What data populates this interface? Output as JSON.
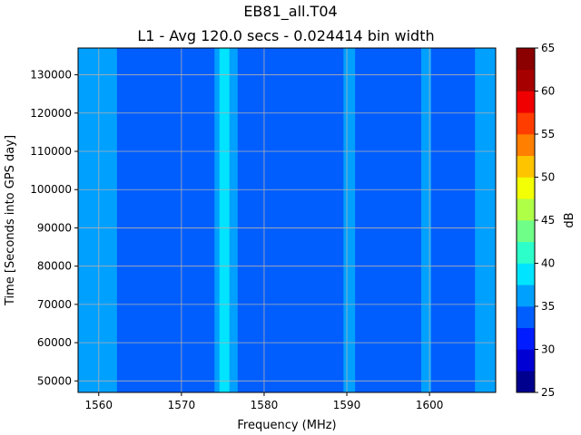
{
  "chart_data": {
    "type": "heatmap",
    "title": "EB81_all.T04",
    "subtitle": "L1 - Avg 120.0 secs - 0.024414 bin width",
    "xlabel": "Frequency (MHz)",
    "ylabel": "Time [Seconds into GPS day]",
    "xlim": [
      1557.5,
      1608
    ],
    "ylim": [
      47000,
      137000
    ],
    "x_ticks": [
      1560,
      1570,
      1580,
      1590,
      1600
    ],
    "y_ticks": [
      50000,
      60000,
      70000,
      80000,
      90000,
      100000,
      110000,
      120000,
      130000
    ],
    "grid": true,
    "colorbar": {
      "label": "dB",
      "min": 25,
      "max": 65,
      "step": 2.5,
      "ticks": [
        25,
        30,
        35,
        40,
        45,
        50,
        55,
        60,
        65
      ],
      "colors": [
        "#00008f",
        "#0000d4",
        "#001cff",
        "#005eff",
        "#00a0ff",
        "#00e4ff",
        "#2dffca",
        "#6fff88",
        "#b0ff47",
        "#f2ff05",
        "#ffc400",
        "#ff7f00",
        "#ff3d00",
        "#f00000",
        "#a70000",
        "#8b0000"
      ]
    },
    "background_level_db": 33.8,
    "bands": [
      {
        "x_start": 1557.5,
        "x_end": 1562.2,
        "level_db": 36.5
      },
      {
        "x_start": 1574.0,
        "x_end": 1576.8,
        "level_db": 36.5
      },
      {
        "x_start": 1574.6,
        "x_end": 1575.8,
        "level_db": 39.0
      },
      {
        "x_start": 1589.6,
        "x_end": 1591.0,
        "level_db": 36.5
      },
      {
        "x_start": 1599.0,
        "x_end": 1600.2,
        "level_db": 36.5
      },
      {
        "x_start": 1605.5,
        "x_end": 1608.0,
        "level_db": 36.5
      }
    ]
  }
}
